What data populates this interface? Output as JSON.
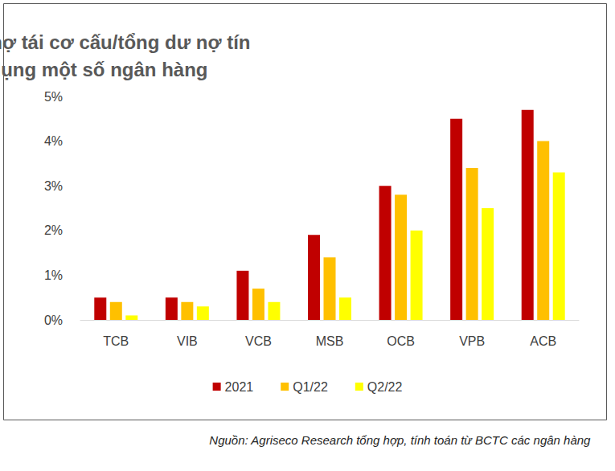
{
  "chart_data": {
    "type": "bar",
    "title": "Tỷ lệ nợ tái cơ cấu/tổng dư nợ tín dụng một số ngân hàng",
    "source": "Nguồn: Agriseco Research tổng hợp, tính toán từ BCTC các ngân hàng",
    "categories": [
      "TCB",
      "VIB",
      "VCB",
      "MSB",
      "OCB",
      "VPB",
      "ACB"
    ],
    "series": [
      {
        "name": "2021",
        "color": "#c00000",
        "values": [
          0.5,
          0.5,
          1.1,
          1.9,
          3.0,
          4.5,
          4.7
        ]
      },
      {
        "name": "Q1/22",
        "color": "#ffc000",
        "values": [
          0.4,
          0.4,
          0.7,
          1.4,
          2.8,
          3.4,
          4.0
        ]
      },
      {
        "name": "Q2/22",
        "color": "#ffff00",
        "values": [
          0.1,
          0.3,
          0.4,
          0.5,
          2.0,
          2.5,
          3.3
        ]
      }
    ],
    "ylim": [
      0,
      5
    ],
    "yticks": [
      {
        "value": 0,
        "label": "0%"
      },
      {
        "value": 1,
        "label": "1%"
      },
      {
        "value": 2,
        "label": "2%"
      },
      {
        "value": 3,
        "label": "3%"
      },
      {
        "value": 4,
        "label": "4%"
      },
      {
        "value": 5,
        "label": "5%"
      }
    ],
    "grid": false,
    "legend": "bottom"
  }
}
